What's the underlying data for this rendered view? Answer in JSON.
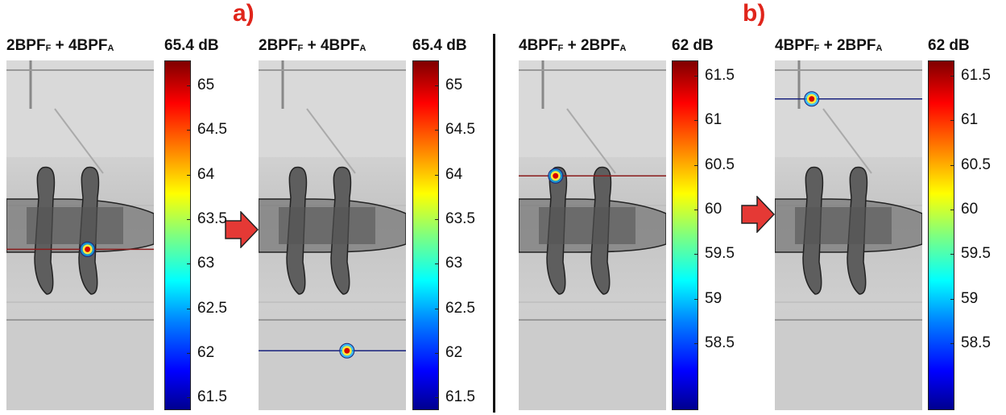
{
  "section_a_label": "a)",
  "section_b_label": "b)",
  "panels": [
    {
      "title_main": "2BPF",
      "title_sub_1": "F",
      "title_mid": " + 4BPF",
      "title_sub_2": "A",
      "value": "65.4 dB",
      "ticks": [
        "65",
        "64.5",
        "64",
        "63.5",
        "63",
        "62.5",
        "62",
        "61.5"
      ],
      "marker_fraction": [
        0.55,
        0.54
      ],
      "line_color": "#8a1c1c"
    },
    {
      "title_main": "2BPF",
      "title_sub_1": "F",
      "title_mid": " + 4BPF",
      "title_sub_2": "A",
      "value": "65.4 dB",
      "ticks": [
        "65",
        "64.5",
        "64",
        "63.5",
        "63",
        "62.5",
        "62",
        "61.5"
      ],
      "marker_fraction": [
        0.6,
        0.83
      ],
      "line_color": "#1a237e"
    },
    {
      "title_main": "4BPF",
      "title_sub_1": "F",
      "title_mid": " + 2BPF",
      "title_sub_2": "A",
      "value": "62 dB",
      "ticks": [
        "61.5",
        "61",
        "60.5",
        "60",
        "59.5",
        "59",
        "58.5"
      ],
      "marker_fraction": [
        0.25,
        0.33
      ],
      "line_color": "#8a1c1c"
    },
    {
      "title_main": "4BPF",
      "title_sub_1": "F",
      "title_mid": " + 2BPF",
      "title_sub_2": "A",
      "value": "62 dB",
      "ticks": [
        "61.5",
        "61",
        "60.5",
        "60",
        "59.5",
        "59",
        "58.5"
      ],
      "marker_fraction": [
        0.25,
        0.11
      ],
      "line_color": "#1a237e"
    }
  ],
  "colormap": "jet",
  "arrow_color": "#e53935"
}
